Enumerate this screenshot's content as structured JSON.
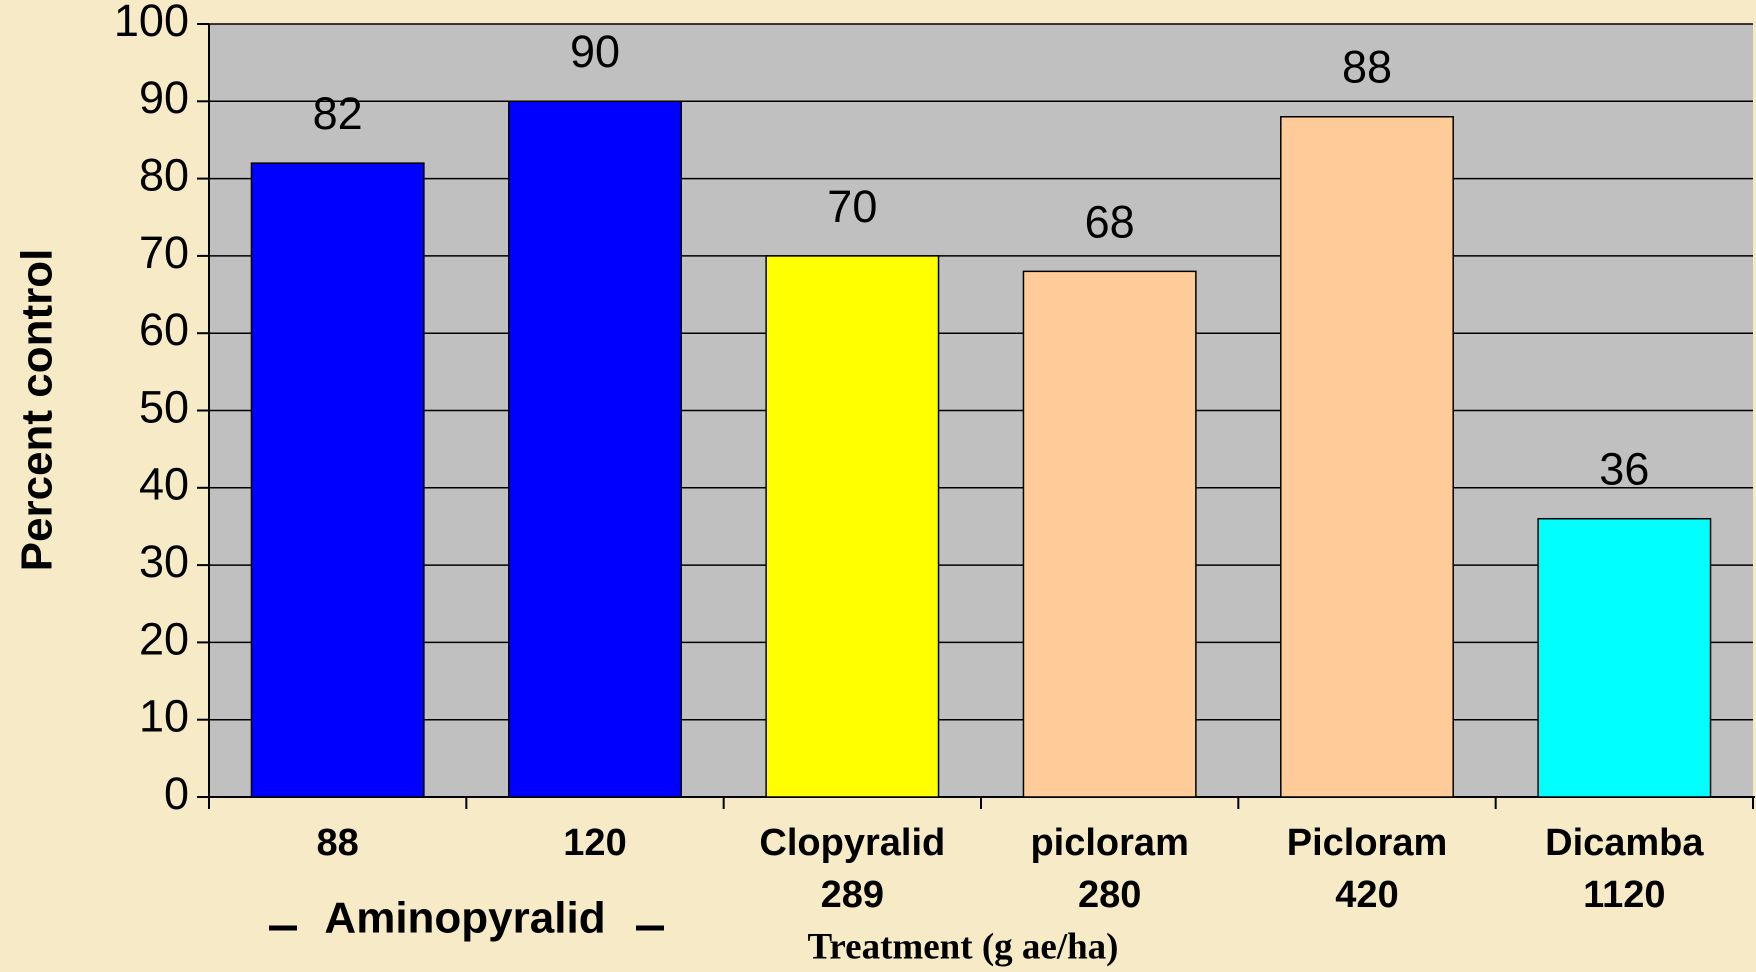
{
  "chart_data": {
    "type": "bar",
    "categories": [
      [
        "88"
      ],
      [
        "120"
      ],
      [
        "Clopyralid",
        "289"
      ],
      [
        "picloram",
        "280"
      ],
      [
        "Picloram",
        "420"
      ],
      [
        "Dicamba",
        "1120"
      ]
    ],
    "group_label": "Aminopyralid",
    "values": [
      82,
      90,
      70,
      68,
      88,
      36
    ],
    "colors": [
      "#0000ff",
      "#0000ff",
      "#ffff00",
      "#ffcc99",
      "#ffcc99",
      "#00ffff"
    ],
    "ylim": [
      0,
      100
    ],
    "yticks": [
      0,
      10,
      20,
      30,
      40,
      50,
      60,
      70,
      80,
      90,
      100
    ],
    "grid": true,
    "x_label": "Treatment (g ae/ha)",
    "y_label": "Percent control"
  }
}
